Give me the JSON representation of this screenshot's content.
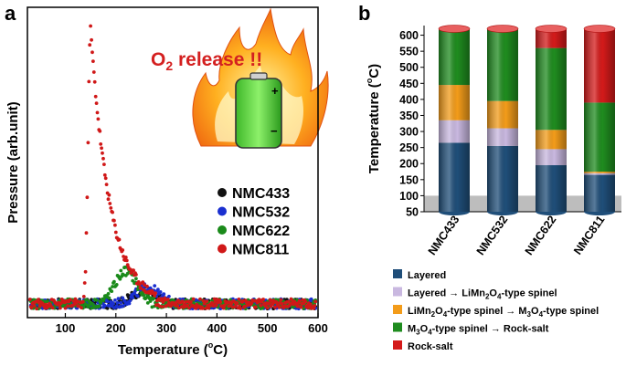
{
  "panels": {
    "a": "a",
    "b": "b"
  },
  "chart_data": [
    {
      "type": "scatter",
      "title": "",
      "xlabel": "Temperature (°C)",
      "xlabel_main": "Temperature (",
      "xlabel_unit": "C)",
      "ylabel": "Pressure (arb.unit)",
      "xlim": [
        25,
        600
      ],
      "xticks": [
        100,
        200,
        300,
        400,
        500,
        600
      ],
      "annotation": {
        "prefix": "O",
        "sub": "2",
        "suffix": " release !!",
        "color": "#d42020"
      },
      "legend": [
        {
          "label": "NMC433",
          "color": "#111111"
        },
        {
          "label": "NMC532",
          "color": "#1a2fd0"
        },
        {
          "label": "NMC622",
          "color": "#1a8a1a"
        },
        {
          "label": "NMC811",
          "color": "#d01818"
        }
      ],
      "series": [
        {
          "name": "NMC433",
          "color": "#111111",
          "peak_x": 255,
          "peak_y": 0.05,
          "width": 30
        },
        {
          "name": "NMC532",
          "color": "#1a2fd0",
          "peak_x": 262,
          "peak_y": 0.06,
          "width": 32
        },
        {
          "name": "NMC622",
          "color": "#1a8a1a",
          "peak_x": 220,
          "peak_y": 0.12,
          "width": 30
        },
        {
          "name": "NMC811",
          "color": "#d01818",
          "peak_x": 150,
          "peak_y": 1.0,
          "width": 30
        }
      ],
      "baseline": 0.0,
      "ylim": [
        -0.05,
        1.08
      ]
    },
    {
      "type": "stacked_bar",
      "title": "",
      "ylabel": "Temperature (°C)",
      "ylabel_main": "Temperature (",
      "ylabel_unit": "C)",
      "ylim": [
        50,
        630
      ],
      "yticks": [
        50,
        100,
        150,
        200,
        250,
        300,
        350,
        400,
        450,
        500,
        550,
        600
      ],
      "grey_region_max": 100,
      "categories": [
        "NMC433",
        "NMC532",
        "NMC622",
        "NMC811"
      ],
      "segments": [
        {
          "name": "Layered",
          "color": "#1f4e79",
          "values_top": [
            265,
            255,
            195,
            165
          ]
        },
        {
          "name": "Layered → LiMn2O4-type spinel",
          "color": "#c9b8e0",
          "values_top": [
            335,
            310,
            245,
            170
          ]
        },
        {
          "name": "LiMn2O4-type spinel → M3O4-type spinel",
          "color": "#f39c1a",
          "values_top": [
            445,
            395,
            305,
            175
          ]
        },
        {
          "name": "M3O4-type spinel → Rock-salt",
          "color": "#1f8c1f",
          "values_top": [
            620,
            620,
            560,
            390
          ]
        },
        {
          "name": "Rock-salt",
          "color": "#d41a1a",
          "values_top": [
            620,
            620,
            620,
            620
          ]
        }
      ],
      "legend": [
        {
          "label": "Layered",
          "color": "#1f4e79",
          "parts": [
            {
              "t": "Layered"
            }
          ]
        },
        {
          "label": "Layered → LiMn2O4-type spinel",
          "color": "#c9b8e0",
          "parts": [
            {
              "t": "Layered  → LiMn"
            },
            {
              "t": "2",
              "sub": true
            },
            {
              "t": "O"
            },
            {
              "t": "4",
              "sub": true
            },
            {
              "t": "-type spinel"
            }
          ]
        },
        {
          "label": "LiMn2O4-type spinel → M3O4-type spinel",
          "color": "#f39c1a",
          "parts": [
            {
              "t": "LiMn"
            },
            {
              "t": "2",
              "sub": true
            },
            {
              "t": "O"
            },
            {
              "t": "4",
              "sub": true
            },
            {
              "t": "-type spinel → M"
            },
            {
              "t": "3",
              "sub": true
            },
            {
              "t": "O"
            },
            {
              "t": "4",
              "sub": true
            },
            {
              "t": "-type spinel"
            }
          ]
        },
        {
          "label": "M3O4-type spinel → Rock-salt",
          "color": "#1f8c1f",
          "parts": [
            {
              "t": "M"
            },
            {
              "t": "3",
              "sub": true
            },
            {
              "t": "O"
            },
            {
              "t": "4",
              "sub": true
            },
            {
              "t": "-type spinel → Rock-salt"
            }
          ]
        },
        {
          "label": "Rock-salt",
          "color": "#d41a1a",
          "parts": [
            {
              "t": "Rock-salt"
            }
          ]
        }
      ]
    }
  ]
}
